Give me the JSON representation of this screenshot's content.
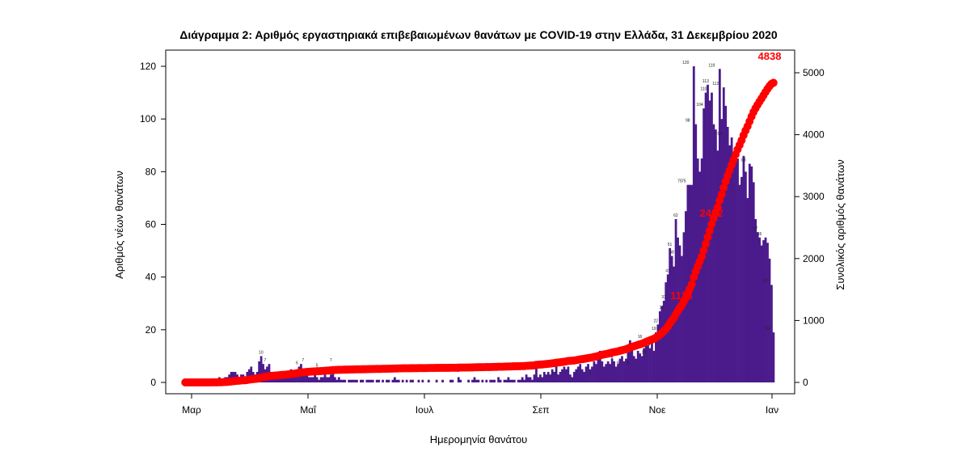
{
  "chart_data": {
    "type": "bar",
    "title": "Διάγραμμα 2: Αριθμός εργαστηριακά επιβεβαιωμένων θανάτων με COVID-19 στην Ελλάδα, 31 Δεκεμβρίου 2020",
    "xlabel": "Ημερομηνία θανάτου",
    "ylabel_left": "Αριθμός νέων θανάτων",
    "ylabel_right": "Συνολικός αριθμός θανάτων",
    "ylim_left": [
      0,
      120
    ],
    "ylim_right": [
      0,
      5000
    ],
    "y_ticks_left": [
      "0",
      "20",
      "40",
      "60",
      "80",
      "100",
      "120"
    ],
    "y_ticks_right": [
      "0",
      "1000",
      "2000",
      "3000",
      "4000",
      "5000"
    ],
    "x_ticks": [
      "Μαρ",
      "Μαΐ",
      "Ιουλ",
      "Σεπ",
      "Νοε",
      "Ιαν"
    ],
    "colors": {
      "bars": "#4b1b8c",
      "cumulative": "#ff0000"
    },
    "series": [
      {
        "type": "bar",
        "axis": "left",
        "daily_values": [
          0,
          0,
          0,
          0,
          0,
          0,
          0,
          0,
          0,
          0,
          0,
          0,
          0,
          1,
          0,
          0,
          1,
          2,
          0,
          1,
          2,
          2,
          3,
          4,
          4,
          4,
          3,
          2,
          3,
          3,
          2,
          4,
          5,
          6,
          4,
          3,
          4,
          8,
          10,
          7,
          5,
          6,
          7,
          4,
          3,
          2,
          3,
          3,
          4,
          3,
          2,
          3,
          4,
          5,
          3,
          4,
          5,
          6,
          7,
          4,
          3,
          3,
          2,
          2,
          2,
          3,
          2,
          1,
          2,
          2,
          3,
          2,
          2,
          3,
          4,
          2,
          1,
          2,
          1,
          1,
          1,
          0,
          1,
          1,
          1,
          1,
          1,
          0,
          1,
          1,
          0,
          1,
          1,
          1,
          1,
          0,
          1,
          1,
          0,
          1,
          0,
          1,
          1,
          0,
          1,
          2,
          1,
          1,
          0,
          1,
          0,
          1,
          0,
          1,
          1,
          0,
          0,
          1,
          0,
          1,
          0,
          0,
          1,
          0,
          0,
          0,
          1,
          0,
          0,
          1,
          0,
          0,
          0,
          1,
          1,
          0,
          0,
          2,
          1,
          0,
          0,
          0,
          1,
          0,
          1,
          2,
          1,
          1,
          0,
          1,
          0,
          1,
          0,
          1,
          1,
          1,
          0,
          2,
          1,
          0,
          1,
          1,
          2,
          1,
          1,
          1,
          0,
          1,
          1,
          2,
          1,
          3,
          2,
          2,
          1,
          3,
          8,
          2,
          3,
          2,
          4,
          3,
          4,
          3,
          5,
          4,
          6,
          3,
          4,
          5,
          6,
          5,
          6,
          3,
          2,
          4,
          5,
          6,
          7,
          5,
          4,
          6,
          7,
          5,
          6,
          8,
          7,
          9,
          12,
          8,
          6,
          7,
          8,
          7,
          9,
          8,
          6,
          7,
          9,
          10,
          8,
          9,
          12,
          16,
          13,
          10,
          9,
          12,
          11,
          10,
          13,
          15,
          14,
          13,
          15,
          12,
          19,
          22,
          27,
          29,
          31,
          38,
          41,
          51,
          48,
          44,
          62,
          55,
          52,
          48,
          57,
          65,
          75,
          75,
          75,
          120,
          98,
          85,
          80,
          85,
          104,
          110,
          113,
          107,
          110,
          98,
          96,
          88,
          119,
          100,
          112,
          105,
          97,
          90,
          93,
          86,
          88,
          85,
          75,
          78,
          86,
          80,
          70,
          83,
          82,
          76,
          62,
          57,
          55,
          52,
          54,
          55,
          53,
          47,
          37,
          19
        ]
      },
      {
        "type": "line",
        "axis": "right",
        "name": "cumulative"
      }
    ],
    "bar_data_labels": [
      "10",
      "7",
      "6",
      "7",
      "5",
      "7",
      "3",
      "3",
      "4",
      "2",
      "2",
      "2",
      "8",
      "6",
      "6",
      "12",
      "16",
      "10",
      "13",
      "15",
      "19",
      "22",
      "27",
      "31",
      "41",
      "51",
      "48",
      "62",
      "75",
      "75",
      "120",
      "98",
      "104",
      "110",
      "113",
      "119",
      "112",
      "93",
      "86",
      "83",
      "57",
      "55",
      "37",
      "19"
    ],
    "cumulative_labels": [
      "1113",
      "2452",
      "4838"
    ]
  }
}
